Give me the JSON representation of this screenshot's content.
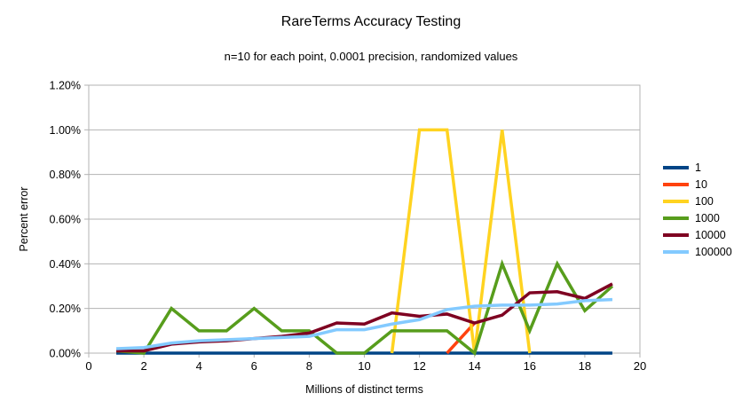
{
  "title": "RareTerms Accuracy Testing",
  "subtitle": "n=10 for each point, 0.0001 precision, randomized values",
  "chart_data": {
    "type": "line",
    "x": [
      1,
      2,
      3,
      4,
      5,
      6,
      7,
      8,
      9,
      10,
      11,
      12,
      13,
      14,
      15,
      16,
      17,
      18,
      19
    ],
    "series": [
      {
        "name": "1",
        "color": "#004586",
        "values": [
          0,
          0,
          0,
          0,
          0,
          0,
          0,
          0,
          0,
          0,
          0,
          0,
          0,
          0,
          0,
          0,
          0,
          0,
          0
        ]
      },
      {
        "name": "10",
        "color": "#ff420e",
        "values": [
          null,
          null,
          null,
          null,
          null,
          null,
          null,
          null,
          null,
          null,
          null,
          null,
          0,
          0.135,
          null,
          null,
          null,
          null,
          null
        ]
      },
      {
        "name": "100",
        "color": "#ffd320",
        "values": [
          null,
          null,
          null,
          null,
          null,
          null,
          null,
          null,
          null,
          null,
          0,
          1.0,
          1.0,
          0,
          1.0,
          0,
          null,
          null,
          null
        ]
      },
      {
        "name": "1000",
        "color": "#579d1c",
        "values": [
          0.01,
          0,
          0.2,
          0.1,
          0.1,
          0.2,
          0.1,
          0.1,
          0,
          0,
          0.1,
          0.1,
          0.1,
          0,
          0.4,
          0.1,
          0.4,
          0.19,
          0.3
        ]
      },
      {
        "name": "10000",
        "color": "#7e0021",
        "values": [
          0.01,
          0.01,
          0.04,
          0.05,
          0.055,
          0.065,
          0.075,
          0.09,
          0.135,
          0.13,
          0.18,
          0.165,
          0.175,
          0.135,
          0.17,
          0.27,
          0.275,
          0.245,
          0.31
        ]
      },
      {
        "name": "100000",
        "color": "#83caff",
        "values": [
          0.02,
          0.025,
          0.045,
          0.055,
          0.06,
          0.065,
          0.07,
          0.075,
          0.105,
          0.105,
          0.13,
          0.15,
          0.195,
          0.21,
          0.215,
          0.215,
          0.22,
          0.235,
          0.24
        ]
      }
    ],
    "xlabel": "Millions of distinct terms",
    "ylabel": "Percent error",
    "xlim": [
      0,
      20
    ],
    "ylim": [
      0,
      1.2
    ],
    "x_ticks": [
      0,
      2,
      4,
      6,
      8,
      10,
      12,
      14,
      16,
      18,
      20
    ],
    "y_ticks": [
      0,
      0.2,
      0.4,
      0.6,
      0.8,
      1.0,
      1.2
    ],
    "y_tick_labels": [
      "0.00%",
      "0.20%",
      "0.40%",
      "0.60%",
      "0.80%",
      "1.00%",
      "1.20%"
    ],
    "grid": true,
    "legend_position": "right"
  },
  "style": {
    "grid_color": "#b3b3b3",
    "text_color": "#000000",
    "background": "#ffffff"
  }
}
